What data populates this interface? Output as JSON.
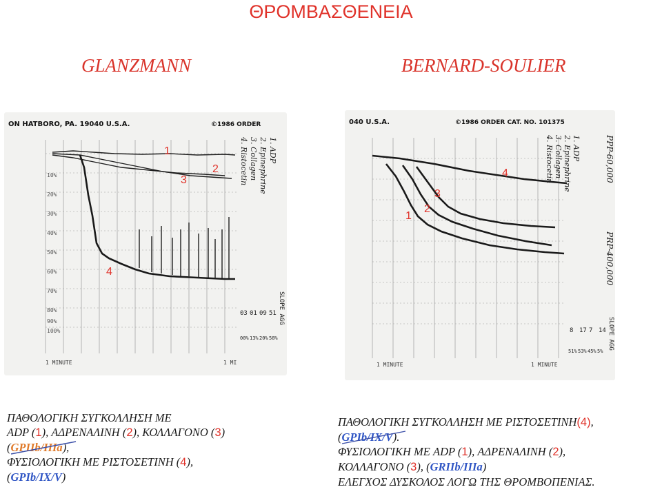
{
  "title": "ΘΡΟΜΒΑΣΘΕΝΕΙΑ",
  "left_heading": "GLANZMANN",
  "right_heading": "BERNARD-SOULIER",
  "left_chart": {
    "header": "ON HATBORO, PA. 19040 U.S.A.",
    "copyright": "©1986 ORDER",
    "percent_ticks": [
      "10%",
      "20%",
      "30%",
      "40%",
      "50%",
      "60%",
      "70%",
      "80%",
      "90%",
      "100%"
    ],
    "side_labels": [
      "1. ADP",
      "2. Epinephrine",
      "3. Collagen",
      "4. Ristocetin"
    ],
    "column_header": "SLOPE  AGG",
    "slope_values": [
      "03",
      "01",
      "09",
      "51"
    ],
    "agg_values": [
      "00%",
      "13%",
      "20%",
      "58%"
    ],
    "minute_left": "1 MINUTE",
    "minute_right": "1 MI",
    "trace_labels": [
      "1",
      "2",
      "3",
      "4"
    ]
  },
  "right_chart": {
    "header": "040 U.S.A.",
    "copyright": "©1986 ORDER CAT. NO. 101375",
    "side_labels": [
      "1. ADP",
      "2. Epinephrine",
      "3. Collagen",
      "4. Ristocetin"
    ],
    "handwritten": [
      "PPP-60,000",
      "PRP-400,000"
    ],
    "column_header": "SLOPE AGG",
    "slope_values": [
      "8",
      "17",
      "7",
      "14"
    ],
    "agg_values": [
      "51%",
      "53%",
      "45%",
      "5%"
    ],
    "minute_left": "1 MINUTE",
    "minute_right": "1 MINUTE",
    "trace_labels": [
      "1",
      "2",
      "3",
      "4"
    ]
  },
  "left_caption": {
    "line1": "ΠΑΘΟΛΟΓΙΚΗ ΣΥΓΚΟΛΛΗΣΗ ΜΕ",
    "line2_a": "ADP (",
    "line2_n1": "1",
    "line2_b": "), ΑΔΡΕΝΑΛΙΝΗ (",
    "line2_n2": "2",
    "line2_c": "), ΚΟΛΛΑΓΟΝΟ (",
    "line2_n3": "3",
    "line2_d": ")",
    "line3_open": "(",
    "line3_receptor": "GPIIb/IIIa",
    "line3_close": "),",
    "line4_a": "ΦΥΣΙΟΛΟΓΙΚΗ ΜΕ ΡΙΣΤΟΣΕΤΙΝΗ (",
    "line4_n4": "4",
    "line4_b": "),",
    "line5_open": "(",
    "line5_receptor": "GPIb/IX/V",
    "line5_close": ")"
  },
  "right_caption": {
    "line1_a": "ΠΑΘΟΛΟΓΙΚΗ ΣΥΓΚΟΛΛΗΣΗ ΜΕ ΡΙΣΤΟΣΕΤΙΝΗ",
    "line1_n4": "(4)",
    "line1_b": ",",
    "line2_open": "(",
    "line2_receptor": "GPIb/IX/V",
    "line2_close": ").",
    "line3_a": "ΦΥΣΙΟΛΟΓΙΚΗ ΜΕ ADP (",
    "line3_n1": "1",
    "line3_b": "), ΑΔΡΕΝΑΛΙΝΗ (",
    "line3_n2": "2",
    "line3_c": "),",
    "line4_a": "ΚΟΛΛΑΓΟΝΟ (",
    "line4_n3": "3",
    "line4_b": "), (",
    "line4_receptor": "GRIIb/IIIa",
    "line4_c": ")",
    "line5": "ΕΛΕΓΧΟΣ ΔΥΣΚΟΛΟΣ ΛΟΓΩ ΤΗΣ ΘΡΟΜΒΟΠΕΝΙΑΣ."
  },
  "colors": {
    "red": "#e0322a",
    "blue": "#2f55c4",
    "orange": "#e07a2a"
  }
}
